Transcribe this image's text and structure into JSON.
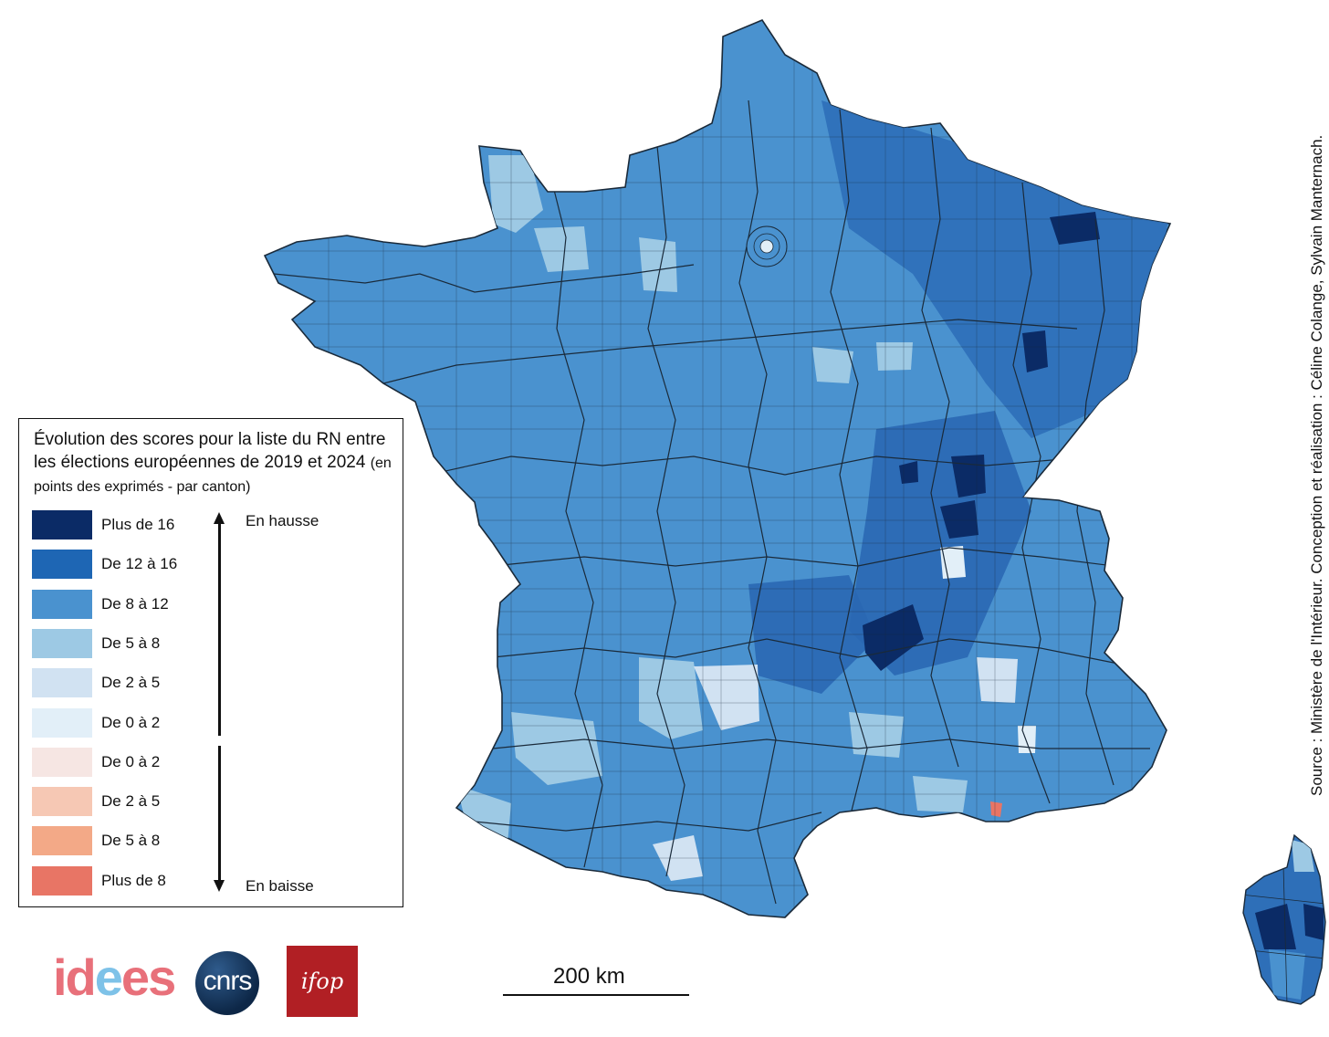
{
  "legend": {
    "title_main": "Évolution des scores pour la liste du RN entre les élections européennes de 2019 et 2024",
    "title_sub": "(en points des exprimés - par canton)",
    "up_label": "En hausse",
    "down_label": "En baisse",
    "classes": [
      {
        "label": "Plus de 16",
        "color": "#0b2b66"
      },
      {
        "label": "De 12 à 16",
        "color": "#1e66b4"
      },
      {
        "label": "De 8 à 12",
        "color": "#4a92cf"
      },
      {
        "label": "De 5 à 8",
        "color": "#9dc9e4"
      },
      {
        "label": "De 2 à 5",
        "color": "#d1e2f2"
      },
      {
        "label": "De 0 à 2",
        "color": "#e2eff8"
      },
      {
        "label": "De 0 à 2",
        "color": "#f6e6e3"
      },
      {
        "label": "De 2 à 5",
        "color": "#f6c8b4"
      },
      {
        "label": "De 5 à 8",
        "color": "#f3a987"
      },
      {
        "label": "Plus de 8",
        "color": "#e87565"
      }
    ]
  },
  "source": "Source : Ministère de l'Intérieur. Conception et réalisation : Céline Colange, Sylvain Manternach.",
  "scale_bar": "200 km",
  "logos": [
    {
      "name": "idees",
      "text_a": "id",
      "text_b": "e",
      "text_c": "es"
    },
    {
      "name": "cnrs",
      "text": "cnrs"
    },
    {
      "name": "ifop",
      "text": "ifop"
    }
  ],
  "colors": {
    "map_base": "#4a92cf",
    "boundary": "#1a2a3a"
  }
}
